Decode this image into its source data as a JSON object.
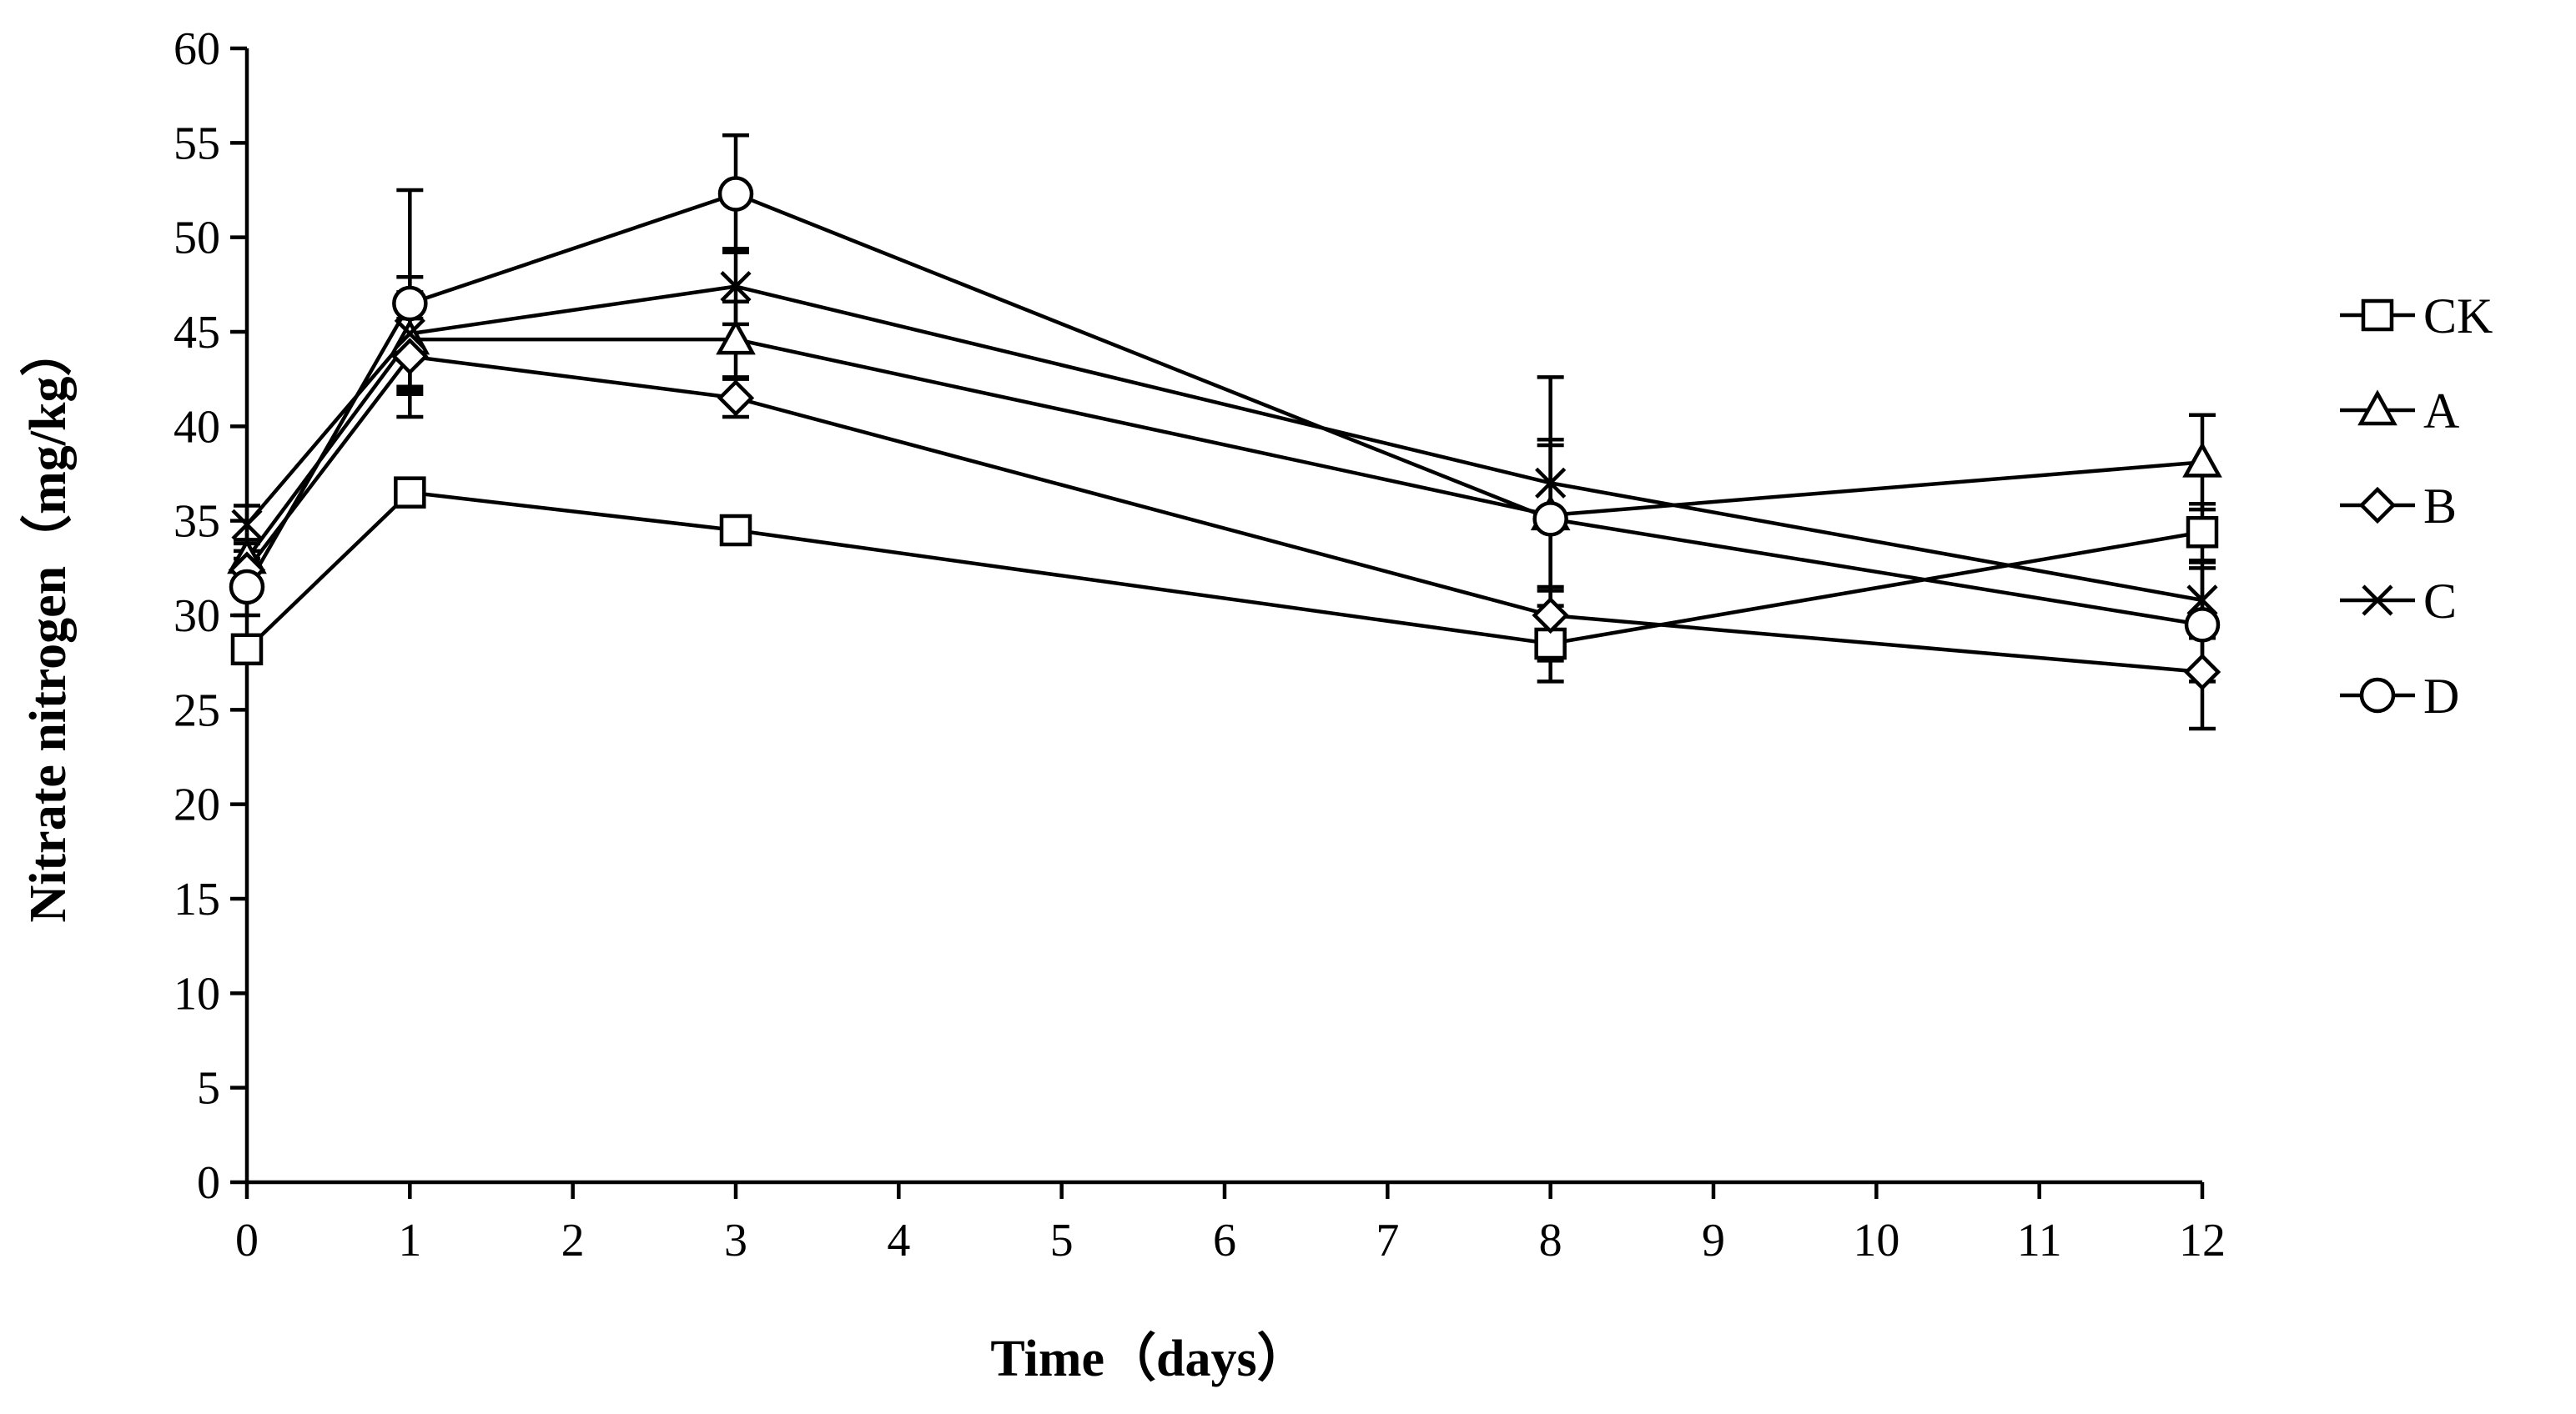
{
  "chart_data": {
    "type": "line",
    "title": "",
    "xlabel": "Time（days）",
    "ylabel": "Nitrate nitrogen（mg/kg）",
    "xlim": [
      0,
      12
    ],
    "ylim": [
      0,
      60
    ],
    "x_ticks": [
      0,
      1,
      2,
      3,
      4,
      5,
      6,
      7,
      8,
      9,
      10,
      11,
      12
    ],
    "y_ticks": [
      0,
      5,
      10,
      15,
      20,
      25,
      30,
      35,
      40,
      45,
      50,
      55,
      60
    ],
    "x": [
      0,
      1,
      3,
      8,
      12
    ],
    "grid": false,
    "legend_position": "right",
    "series": [
      {
        "name": "CK",
        "marker": "square",
        "values": [
          28.2,
          36.5,
          34.5,
          28.5,
          34.4
        ],
        "errors": [
          0.6,
          0.6,
          0.6,
          2.0,
          1.5
        ]
      },
      {
        "name": "A",
        "marker": "triangle",
        "values": [
          33.0,
          44.6,
          44.6,
          35.3,
          38.1
        ],
        "errors": [
          1.0,
          2.5,
          2.0,
          4.0,
          2.5
        ]
      },
      {
        "name": "B",
        "marker": "diamond",
        "values": [
          32.4,
          43.7,
          41.5,
          30.0,
          27.0
        ],
        "errors": [
          1.0,
          2.0,
          1.0,
          1.5,
          3.0
        ]
      },
      {
        "name": "C",
        "marker": "x",
        "values": [
          34.8,
          44.9,
          47.4,
          37.0,
          30.8
        ],
        "errors": [
          1.0,
          3.0,
          2.0,
          2.0,
          2.0
        ]
      },
      {
        "name": "D",
        "marker": "circle",
        "values": [
          31.5,
          46.5,
          52.3,
          35.1,
          29.5
        ],
        "errors": [
          1.5,
          6.0,
          3.1,
          7.5,
          3.0
        ]
      }
    ]
  }
}
